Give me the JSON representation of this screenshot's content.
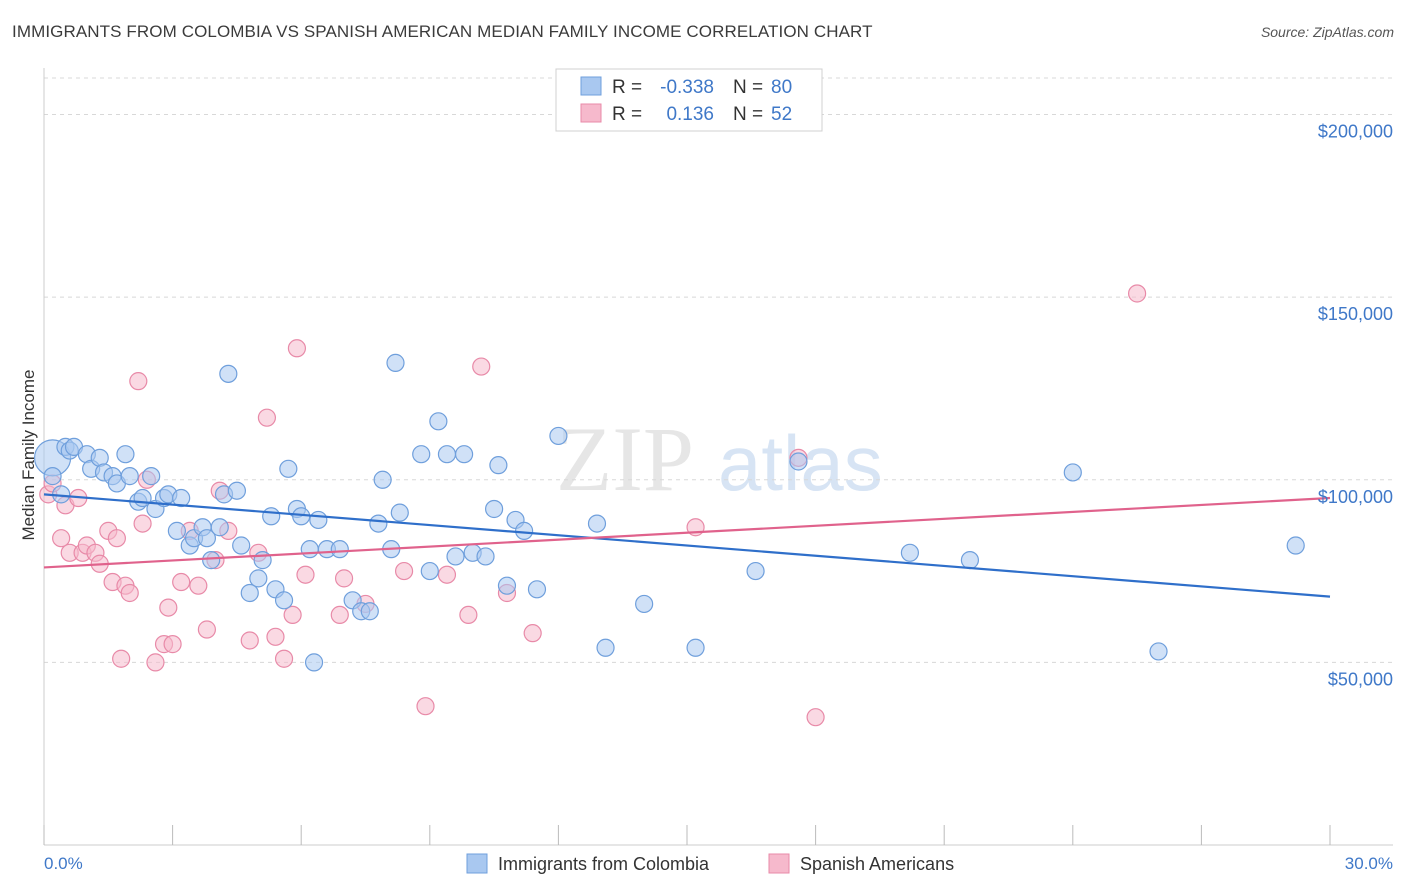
{
  "title": "IMMIGRANTS FROM COLOMBIA VS SPANISH AMERICAN MEDIAN FAMILY INCOME CORRELATION CHART",
  "source": "Source: ZipAtlas.com",
  "watermark": {
    "zip": "ZIP",
    "atlas": "atlas"
  },
  "colors": {
    "blue_fill": "#a9c8f0",
    "blue_stroke": "#6f9fdc",
    "blue_line": "#2f6fca",
    "pink_fill": "#f6b9cc",
    "pink_stroke": "#e88aa8",
    "pink_line": "#e0628c",
    "axis_text": "#3f78c8",
    "grid": "#d8d8d8"
  },
  "legend": {
    "rows": [
      {
        "r_label": "R =",
        "r_value": "-0.338",
        "n_label": "N =",
        "n_value": "80"
      },
      {
        "r_label": "R =",
        "r_value": "0.136",
        "n_label": "N =",
        "n_value": "52"
      }
    ]
  },
  "bottom_legend": [
    "Immigrants from Colombia",
    "Spanish Americans"
  ],
  "chart_data": {
    "type": "scatter",
    "title": "IMMIGRANTS FROM COLOMBIA VS SPANISH AMERICAN MEDIAN FAMILY INCOME CORRELATION CHART",
    "xlabel": "",
    "ylabel": "Median Family Income",
    "xlim": [
      0,
      30
    ],
    "ylim": [
      0,
      210000
    ],
    "x_tick_labels": [
      "0.0%",
      "30.0%"
    ],
    "y_ticks": [
      50000,
      100000,
      150000,
      200000
    ],
    "y_tick_labels": [
      "$50,000",
      "$100,000",
      "$150,000",
      "$200,000"
    ],
    "grid": "horizontal dashed",
    "legend_position": "top-center",
    "series": [
      {
        "name": "Immigrants from Colombia",
        "r": -0.338,
        "n": 80,
        "trend": {
          "x": [
            0,
            30
          ],
          "y": [
            96000,
            68000
          ]
        },
        "points": [
          [
            0.2,
            106000
          ],
          [
            0.2,
            101000
          ],
          [
            0.4,
            96000
          ],
          [
            0.5,
            109000
          ],
          [
            0.6,
            108000
          ],
          [
            0.7,
            109000
          ],
          [
            1.0,
            107000
          ],
          [
            1.1,
            103000
          ],
          [
            1.3,
            106000
          ],
          [
            1.4,
            102000
          ],
          [
            1.6,
            101000
          ],
          [
            1.7,
            99000
          ],
          [
            1.9,
            107000
          ],
          [
            2.0,
            101000
          ],
          [
            2.2,
            94000
          ],
          [
            2.3,
            95000
          ],
          [
            2.5,
            101000
          ],
          [
            2.6,
            92000
          ],
          [
            2.8,
            95000
          ],
          [
            2.9,
            96000
          ],
          [
            3.1,
            86000
          ],
          [
            3.2,
            95000
          ],
          [
            3.4,
            82000
          ],
          [
            3.5,
            84000
          ],
          [
            3.7,
            87000
          ],
          [
            3.8,
            84000
          ],
          [
            3.9,
            78000
          ],
          [
            4.1,
            87000
          ],
          [
            4.2,
            96000
          ],
          [
            4.3,
            129000
          ],
          [
            4.5,
            97000
          ],
          [
            4.6,
            82000
          ],
          [
            4.8,
            69000
          ],
          [
            5.0,
            73000
          ],
          [
            5.1,
            78000
          ],
          [
            5.3,
            90000
          ],
          [
            5.4,
            70000
          ],
          [
            5.6,
            67000
          ],
          [
            5.7,
            103000
          ],
          [
            5.9,
            92000
          ],
          [
            6.0,
            90000
          ],
          [
            6.2,
            81000
          ],
          [
            6.3,
            50000
          ],
          [
            6.4,
            89000
          ],
          [
            6.6,
            81000
          ],
          [
            6.9,
            81000
          ],
          [
            7.2,
            67000
          ],
          [
            7.4,
            64000
          ],
          [
            7.6,
            64000
          ],
          [
            7.8,
            88000
          ],
          [
            7.9,
            100000
          ],
          [
            8.1,
            81000
          ],
          [
            8.2,
            132000
          ],
          [
            8.3,
            91000
          ],
          [
            8.8,
            107000
          ],
          [
            9.0,
            75000
          ],
          [
            9.2,
            116000
          ],
          [
            9.4,
            107000
          ],
          [
            9.6,
            79000
          ],
          [
            9.8,
            107000
          ],
          [
            10.0,
            80000
          ],
          [
            10.3,
            79000
          ],
          [
            10.5,
            92000
          ],
          [
            10.6,
            104000
          ],
          [
            10.8,
            71000
          ],
          [
            11.0,
            89000
          ],
          [
            11.2,
            86000
          ],
          [
            11.5,
            70000
          ],
          [
            12.0,
            112000
          ],
          [
            12.9,
            88000
          ],
          [
            13.1,
            54000
          ],
          [
            14.0,
            66000
          ],
          [
            15.2,
            54000
          ],
          [
            16.6,
            75000
          ],
          [
            17.6,
            105000
          ],
          [
            20.2,
            80000
          ],
          [
            21.6,
            78000
          ],
          [
            24.0,
            102000
          ],
          [
            26.0,
            53000
          ],
          [
            29.2,
            82000
          ]
        ]
      },
      {
        "name": "Spanish Americans",
        "r": 0.136,
        "n": 52,
        "trend": {
          "x": [
            0,
            30
          ],
          "y": [
            76000,
            95000
          ]
        },
        "points": [
          [
            0.1,
            96000
          ],
          [
            0.2,
            99000
          ],
          [
            0.4,
            84000
          ],
          [
            0.5,
            93000
          ],
          [
            0.6,
            80000
          ],
          [
            0.8,
            95000
          ],
          [
            0.9,
            80000
          ],
          [
            1.0,
            82000
          ],
          [
            1.2,
            80000
          ],
          [
            1.3,
            77000
          ],
          [
            1.5,
            86000
          ],
          [
            1.6,
            72000
          ],
          [
            1.7,
            84000
          ],
          [
            1.8,
            51000
          ],
          [
            1.9,
            71000
          ],
          [
            2.0,
            69000
          ],
          [
            2.2,
            127000
          ],
          [
            2.3,
            88000
          ],
          [
            2.4,
            100000
          ],
          [
            2.6,
            50000
          ],
          [
            2.8,
            55000
          ],
          [
            2.9,
            65000
          ],
          [
            3.0,
            55000
          ],
          [
            3.2,
            72000
          ],
          [
            3.4,
            86000
          ],
          [
            3.6,
            71000
          ],
          [
            3.8,
            59000
          ],
          [
            4.0,
            78000
          ],
          [
            4.1,
            97000
          ],
          [
            4.3,
            86000
          ],
          [
            4.8,
            56000
          ],
          [
            5.0,
            80000
          ],
          [
            5.2,
            117000
          ],
          [
            5.4,
            57000
          ],
          [
            5.6,
            51000
          ],
          [
            5.8,
            63000
          ],
          [
            5.9,
            136000
          ],
          [
            6.1,
            74000
          ],
          [
            6.9,
            63000
          ],
          [
            7.0,
            73000
          ],
          [
            7.5,
            66000
          ],
          [
            8.4,
            75000
          ],
          [
            8.9,
            38000
          ],
          [
            9.4,
            74000
          ],
          [
            9.9,
            63000
          ],
          [
            10.2,
            131000
          ],
          [
            10.8,
            69000
          ],
          [
            11.4,
            58000
          ],
          [
            15.2,
            87000
          ],
          [
            17.6,
            106000
          ],
          [
            18.0,
            35000
          ],
          [
            25.5,
            151000
          ]
        ]
      }
    ]
  }
}
